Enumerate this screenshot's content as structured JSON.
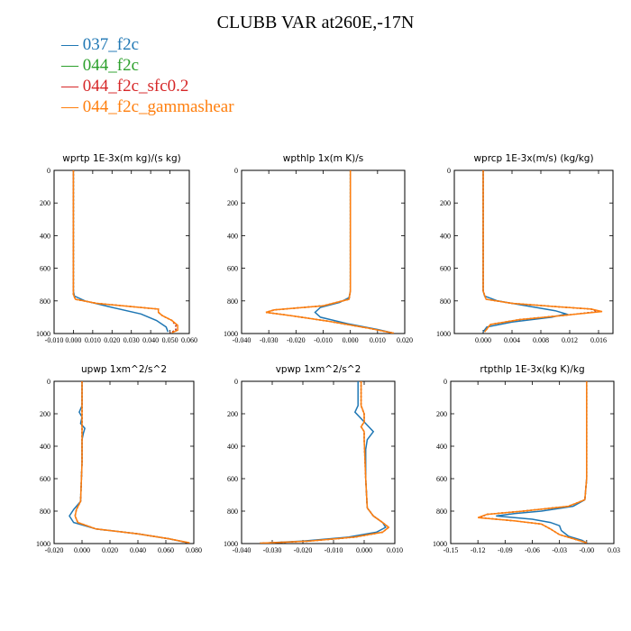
{
  "title": "CLUBB VAR at260E,-17N",
  "legend": [
    {
      "name": "037_f2c",
      "color": "#1f77b4"
    },
    {
      "name": "044_f2c",
      "color": "#2ca02c"
    },
    {
      "name": "044_f2c_sfc0.2",
      "color": "#d62728"
    },
    {
      "name": "044_f2c_gammashear",
      "color": "#ff7f0e"
    }
  ],
  "chart_data": [
    {
      "type": "line",
      "title": "wprtp  1E-3x(m kg)/(s kg)",
      "xlim": [
        -0.01,
        0.06
      ],
      "xticks": [
        -0.01,
        0.0,
        0.01,
        0.02,
        0.03,
        0.04,
        0.05,
        0.06
      ],
      "xtick_labels": [
        "-0.010",
        "0.000",
        "0.010",
        "0.020",
        "0.030",
        "0.040",
        "0.050",
        "0.060"
      ],
      "ylim": [
        0,
        1000
      ],
      "yticks": [
        0,
        200,
        400,
        600,
        800,
        1000
      ],
      "ytick_labels": [
        "0",
        "200",
        "400",
        "600",
        "800",
        "1000"
      ],
      "series": [
        {
          "name": "037_f2c",
          "x": [
            0.0,
            0.0,
            0.0,
            0.0,
            0.0,
            0.0,
            0.0,
            0.0005,
            0.006,
            0.02,
            0.035,
            0.043,
            0.048,
            0.049
          ],
          "y": [
            0,
            100,
            200,
            400,
            600,
            700,
            740,
            770,
            800,
            840,
            880,
            920,
            960,
            990
          ]
        },
        {
          "name": "044_f2c",
          "x": [
            0.0,
            0.0,
            0.0,
            0.0,
            0.0,
            0.0,
            0.0,
            0.001,
            0.012,
            0.03,
            0.044,
            0.044,
            0.046,
            0.051,
            0.053,
            0.053,
            0.05
          ],
          "y": [
            0,
            100,
            200,
            400,
            600,
            700,
            760,
            790,
            815,
            835,
            850,
            870,
            890,
            920,
            950,
            980,
            995
          ]
        },
        {
          "name": "044_f2c_sfc0.2",
          "x": [
            0.0,
            0.0,
            0.0,
            0.0,
            0.0,
            0.0,
            0.0,
            0.001,
            0.012,
            0.03,
            0.044,
            0.044,
            0.046,
            0.051,
            0.053,
            0.053,
            0.05
          ],
          "y": [
            0,
            100,
            200,
            400,
            600,
            700,
            760,
            790,
            815,
            835,
            850,
            870,
            890,
            920,
            950,
            980,
            995
          ]
        },
        {
          "name": "044_f2c_gammashear",
          "x": [
            0.0,
            0.0,
            0.0,
            0.0,
            0.0,
            0.0,
            0.0,
            0.001,
            0.012,
            0.03,
            0.044,
            0.044,
            0.046,
            0.051,
            0.054,
            0.054,
            0.051
          ],
          "y": [
            0,
            100,
            200,
            400,
            600,
            700,
            760,
            790,
            815,
            835,
            850,
            870,
            890,
            920,
            950,
            980,
            995
          ]
        }
      ]
    },
    {
      "type": "line",
      "title": "wpthlp  1x(m K)/s",
      "xlim": [
        -0.04,
        0.02
      ],
      "xticks": [
        -0.04,
        -0.03,
        -0.02,
        -0.01,
        0.0,
        0.01,
        0.02
      ],
      "xtick_labels": [
        "-0.040",
        "-0.030",
        "-0.020",
        "-0.010",
        "0.000",
        "0.010",
        "0.020"
      ],
      "ylim": [
        0,
        1000
      ],
      "yticks": [
        0,
        200,
        400,
        600,
        800,
        1000
      ],
      "ytick_labels": [
        "0",
        "200",
        "400",
        "600",
        "800",
        "1000"
      ],
      "series": [
        {
          "name": "037_f2c",
          "x": [
            0.0,
            0.0,
            0.0,
            0.0,
            0.0,
            -0.0005,
            -0.004,
            -0.011,
            -0.013,
            -0.011,
            -0.001,
            0.01,
            0.016
          ],
          "y": [
            0,
            200,
            400,
            600,
            740,
            780,
            810,
            840,
            870,
            900,
            940,
            975,
            998
          ]
        },
        {
          "name": "044_f2c",
          "x": [
            0.0,
            0.0,
            0.0,
            0.0,
            0.0,
            -0.0005,
            -0.01,
            -0.028,
            -0.031,
            -0.022,
            -0.008,
            0.006,
            0.016
          ],
          "y": [
            0,
            200,
            400,
            600,
            740,
            790,
            830,
            855,
            870,
            890,
            925,
            965,
            998
          ]
        },
        {
          "name": "044_f2c_sfc0.2",
          "x": [
            0.0,
            0.0,
            0.0,
            0.0,
            0.0,
            -0.0005,
            -0.01,
            -0.028,
            -0.031,
            -0.022,
            -0.008,
            0.006,
            0.016
          ],
          "y": [
            0,
            200,
            400,
            600,
            740,
            790,
            830,
            855,
            870,
            890,
            925,
            965,
            998
          ]
        },
        {
          "name": "044_f2c_gammashear",
          "x": [
            0.0,
            0.0,
            0.0,
            0.0,
            0.0,
            -0.0005,
            -0.01,
            -0.028,
            -0.031,
            -0.022,
            -0.008,
            0.006,
            0.016
          ],
          "y": [
            0,
            200,
            400,
            600,
            740,
            790,
            830,
            855,
            870,
            890,
            925,
            965,
            998
          ]
        }
      ]
    },
    {
      "type": "line",
      "title": "wprcp  1E-3x(m/s) (kg/kg)",
      "xlim": [
        -0.004,
        0.018
      ],
      "xticks": [
        0.0,
        0.004,
        0.008,
        0.012,
        0.016
      ],
      "xtick_labels": [
        "0.000",
        "0.004",
        "0.008",
        "0.012",
        "0.016"
      ],
      "ylim": [
        0,
        1000
      ],
      "yticks": [
        0,
        200,
        400,
        600,
        800,
        1000
      ],
      "ytick_labels": [
        "0",
        "200",
        "400",
        "600",
        "800",
        "1000"
      ],
      "series": [
        {
          "name": "037_f2c",
          "x": [
            0.0,
            0.0,
            0.0,
            0.0,
            0.0,
            0.0002,
            0.002,
            0.006,
            0.01,
            0.0115,
            0.0095,
            0.004,
            0.0005,
            0.0
          ],
          "y": [
            0,
            200,
            400,
            600,
            740,
            770,
            800,
            830,
            860,
            880,
            900,
            930,
            960,
            990
          ]
        },
        {
          "name": "044_f2c",
          "x": [
            0.0,
            0.0,
            0.0,
            0.0,
            0.0,
            0.0004,
            0.004,
            0.01,
            0.015,
            0.016,
            0.012,
            0.005,
            0.001,
            0.0002
          ],
          "y": [
            0,
            200,
            400,
            600,
            740,
            790,
            815,
            835,
            850,
            865,
            885,
            915,
            945,
            990
          ]
        },
        {
          "name": "044_f2c_sfc0.2",
          "x": [
            0.0,
            0.0,
            0.0,
            0.0,
            0.0,
            0.0004,
            0.004,
            0.01,
            0.015,
            0.016,
            0.012,
            0.005,
            0.001,
            0.0002
          ],
          "y": [
            0,
            200,
            400,
            600,
            740,
            790,
            815,
            835,
            850,
            865,
            885,
            915,
            945,
            990
          ]
        },
        {
          "name": "044_f2c_gammashear",
          "x": [
            0.0,
            0.0,
            0.0,
            0.0,
            0.0,
            0.0004,
            0.004,
            0.01,
            0.015,
            0.0165,
            0.012,
            0.005,
            0.001,
            0.0002
          ],
          "y": [
            0,
            200,
            400,
            600,
            740,
            790,
            815,
            835,
            850,
            865,
            885,
            915,
            945,
            990
          ]
        }
      ]
    },
    {
      "type": "line",
      "title": "upwp  1xm^2/s^2",
      "xlim": [
        -0.02,
        0.08
      ],
      "xticks": [
        -0.02,
        0.0,
        0.02,
        0.04,
        0.06,
        0.08
      ],
      "xtick_labels": [
        "-0.020",
        "0.000",
        "0.020",
        "0.040",
        "0.060",
        "0.080"
      ],
      "ylim": [
        0,
        1000
      ],
      "yticks": [
        0,
        200,
        400,
        600,
        800,
        1000
      ],
      "ytick_labels": [
        "0",
        "200",
        "400",
        "600",
        "800",
        "1000"
      ],
      "series": [
        {
          "name": "037_f2c",
          "x": [
            0.0,
            0.0,
            -0.002,
            0.0,
            -0.001,
            0.002,
            0.001,
            0.0,
            0.0,
            -0.001,
            -0.006,
            -0.009,
            -0.006,
            0.01,
            0.04,
            0.062,
            0.076
          ],
          "y": [
            0,
            150,
            190,
            220,
            260,
            290,
            320,
            360,
            500,
            740,
            790,
            830,
            870,
            910,
            940,
            970,
            995
          ]
        },
        {
          "name": "044_f2c",
          "x": [
            0.0,
            0.0,
            0.0,
            0.0,
            0.0,
            -0.001,
            -0.004,
            -0.005,
            -0.003,
            0.01,
            0.04,
            0.062,
            0.076
          ],
          "y": [
            0,
            150,
            220,
            300,
            500,
            740,
            790,
            830,
            870,
            910,
            940,
            970,
            995
          ]
        },
        {
          "name": "044_f2c_sfc0.2",
          "x": [
            0.0,
            0.0,
            0.0,
            0.0,
            0.0,
            -0.001,
            -0.004,
            -0.005,
            -0.003,
            0.01,
            0.04,
            0.062,
            0.076
          ],
          "y": [
            0,
            150,
            220,
            300,
            500,
            740,
            790,
            830,
            870,
            910,
            940,
            970,
            995
          ]
        },
        {
          "name": "044_f2c_gammashear",
          "x": [
            0.0,
            0.0,
            0.0,
            0.0,
            0.0,
            -0.001,
            -0.004,
            -0.005,
            -0.003,
            0.01,
            0.04,
            0.062,
            0.077
          ],
          "y": [
            0,
            150,
            220,
            300,
            500,
            740,
            790,
            830,
            870,
            910,
            940,
            970,
            995
          ]
        }
      ]
    },
    {
      "type": "line",
      "title": "vpwp  1xm^2/s^2",
      "xlim": [
        -0.04,
        0.01
      ],
      "xticks": [
        -0.04,
        -0.03,
        -0.02,
        -0.01,
        0.0,
        0.01
      ],
      "xtick_labels": [
        "-0.040",
        "-0.030",
        "-0.020",
        "-0.010",
        "0.000",
        "0.010"
      ],
      "ylim": [
        0,
        1000
      ],
      "yticks": [
        0,
        200,
        400,
        600,
        800,
        1000
      ],
      "ytick_labels": [
        "0",
        "200",
        "400",
        "600",
        "800",
        "1000"
      ],
      "series": [
        {
          "name": "037_f2c",
          "x": [
            -0.002,
            -0.002,
            -0.003,
            -0.001,
            0.001,
            0.003,
            0.001,
            0.0005,
            0.0005,
            0.001,
            0.003,
            0.006,
            0.007,
            0.004,
            -0.005,
            -0.02,
            -0.034
          ],
          "y": [
            0,
            150,
            190,
            230,
            270,
            310,
            360,
            420,
            600,
            780,
            830,
            870,
            900,
            930,
            960,
            985,
            998
          ]
        },
        {
          "name": "044_f2c",
          "x": [
            -0.001,
            -0.001,
            0.0,
            0.0,
            -0.001,
            0.0,
            0.0,
            0.0005,
            0.001,
            0.003,
            0.006,
            0.008,
            0.006,
            -0.003,
            -0.018,
            -0.034
          ],
          "y": [
            0,
            150,
            200,
            250,
            280,
            310,
            360,
            600,
            780,
            830,
            870,
            900,
            930,
            960,
            985,
            998
          ]
        },
        {
          "name": "044_f2c_sfc0.2",
          "x": [
            -0.001,
            -0.001,
            0.0,
            0.0,
            -0.001,
            0.0,
            0.0,
            0.0005,
            0.001,
            0.003,
            0.006,
            0.008,
            0.006,
            -0.003,
            -0.018,
            -0.034
          ],
          "y": [
            0,
            150,
            200,
            250,
            280,
            310,
            360,
            600,
            780,
            830,
            870,
            900,
            930,
            960,
            985,
            998
          ]
        },
        {
          "name": "044_f2c_gammashear",
          "x": [
            -0.001,
            -0.001,
            0.0,
            0.0,
            -0.001,
            0.0,
            0.0,
            0.0005,
            0.001,
            0.003,
            0.006,
            0.008,
            0.006,
            -0.003,
            -0.018,
            -0.034
          ],
          "y": [
            0,
            150,
            200,
            250,
            280,
            310,
            360,
            600,
            780,
            830,
            870,
            900,
            930,
            960,
            985,
            998
          ]
        }
      ]
    },
    {
      "type": "line",
      "title": "rtpthlp  1E-3x(kg K)/kg",
      "xlim": [
        -0.15,
        0.03
      ],
      "xticks": [
        -0.15,
        -0.12,
        -0.09,
        -0.06,
        -0.03,
        0.0,
        0.03
      ],
      "xtick_labels": [
        "-0.15",
        "-0.12",
        "-0.09",
        "-0.06",
        "-0.03",
        "-0.00",
        "0.03"
      ],
      "ylim": [
        0,
        1000
      ],
      "yticks": [
        0,
        200,
        400,
        600,
        800,
        1000
      ],
      "ytick_labels": [
        "0",
        "200",
        "400",
        "600",
        "800",
        "1000"
      ],
      "series": [
        {
          "name": "037_f2c",
          "x": [
            0.0,
            0.0,
            0.0,
            0.0,
            -0.002,
            -0.015,
            -0.05,
            -0.08,
            -0.1,
            -0.06,
            -0.04,
            -0.03,
            -0.028,
            -0.02,
            -0.005,
            0.0
          ],
          "y": [
            0,
            200,
            400,
            600,
            730,
            770,
            800,
            815,
            830,
            850,
            870,
            890,
            920,
            955,
            980,
            995
          ]
        },
        {
          "name": "044_f2c",
          "x": [
            0.0,
            0.0,
            0.0,
            0.0,
            -0.002,
            -0.02,
            -0.07,
            -0.11,
            -0.118,
            -0.08,
            -0.05,
            -0.04,
            -0.03,
            -0.012,
            0.0
          ],
          "y": [
            0,
            200,
            400,
            600,
            730,
            770,
            800,
            820,
            840,
            860,
            880,
            910,
            945,
            975,
            995
          ]
        },
        {
          "name": "044_f2c_sfc0.2",
          "x": [
            0.0,
            0.0,
            0.0,
            0.0,
            -0.002,
            -0.02,
            -0.07,
            -0.11,
            -0.118,
            -0.08,
            -0.05,
            -0.04,
            -0.03,
            -0.012,
            0.0
          ],
          "y": [
            0,
            200,
            400,
            600,
            730,
            770,
            800,
            820,
            840,
            860,
            880,
            910,
            945,
            975,
            995
          ]
        },
        {
          "name": "044_f2c_gammashear",
          "x": [
            0.0,
            0.0,
            0.0,
            0.0,
            -0.002,
            -0.02,
            -0.07,
            -0.11,
            -0.12,
            -0.08,
            -0.05,
            -0.04,
            -0.03,
            -0.012,
            0.0
          ],
          "y": [
            0,
            200,
            400,
            600,
            730,
            770,
            800,
            820,
            840,
            860,
            880,
            910,
            945,
            975,
            995
          ]
        }
      ]
    }
  ]
}
